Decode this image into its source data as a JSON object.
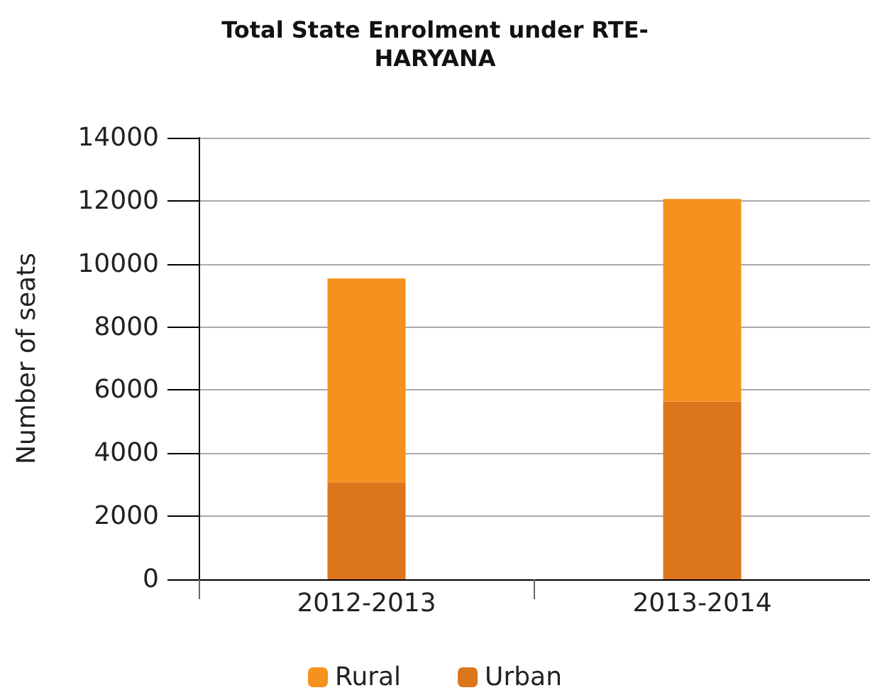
{
  "chart_data": {
    "type": "bar",
    "title": "Total State Enrolment under RTE-\nHARYANA",
    "ylabel": "Number of seats",
    "categories": [
      "2012-2013",
      "2013-2014"
    ],
    "stacked": true,
    "series": [
      {
        "name": "Urban",
        "color": "#dc761c",
        "values": [
          3080,
          5640
        ]
      },
      {
        "name": "Rural",
        "color": "#f5921e",
        "values": [
          6460,
          6420
        ]
      }
    ],
    "ylim": [
      0,
      14000
    ],
    "yticks": [
      0,
      2000,
      4000,
      6000,
      8000,
      10000,
      12000,
      14000
    ],
    "grid": "y",
    "legend": "bottom"
  }
}
